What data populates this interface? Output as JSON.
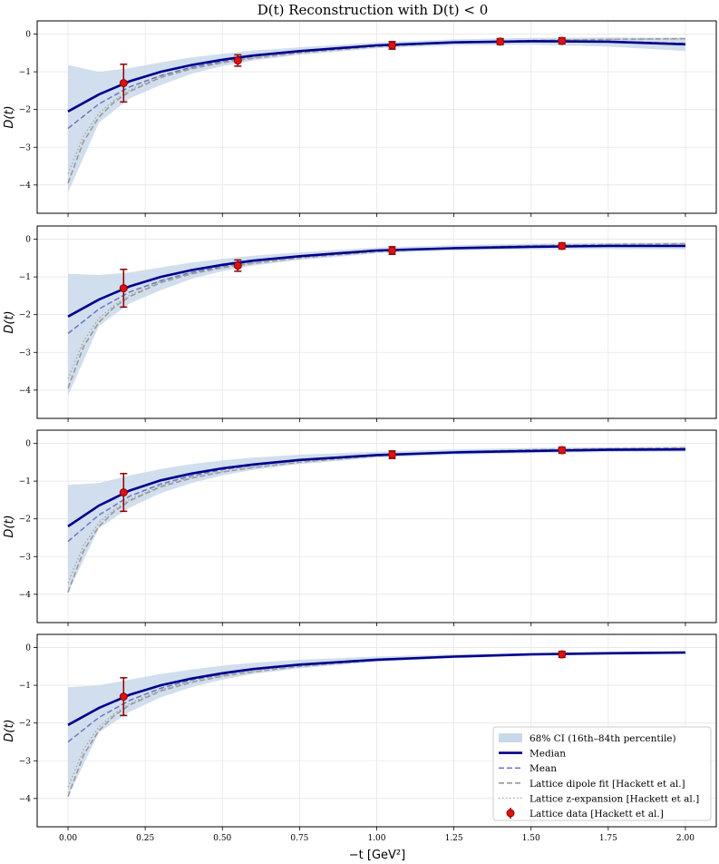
{
  "chart_data": {
    "type": "line",
    "title": "D(t) Reconstruction with D(t) < 0",
    "xlabel": "−t [GeV²]",
    "ylabel": "D(t)",
    "xlim": [
      -0.1,
      2.1
    ],
    "ylim": [
      -4.75,
      0.35
    ],
    "xticks": [
      "0.00",
      "0.25",
      "0.50",
      "0.75",
      "1.00",
      "1.25",
      "1.50",
      "1.75",
      "2.00"
    ],
    "yticks": [
      "0",
      "−1",
      "−2",
      "−3",
      "−4"
    ],
    "grid": true,
    "legend_placement": "lower-right",
    "legend": [
      "68% CI (16th–84th percentile)",
      "Median",
      "Mean",
      "Lattice dipole fit [Hackett et al.]",
      "Lattice z-expansion [Hackett et al.]",
      "Lattice data [Hackett et al.]"
    ],
    "colors": {
      "band": "#c9d8ea",
      "median": "#00008b",
      "mean": "#6b75c2",
      "dipole": "#999999",
      "zexp": "#a8a8a8",
      "data": "#dd1111",
      "errorbar": "#8b0000"
    },
    "reference": {
      "x": [
        0,
        0.05,
        0.1,
        0.15,
        0.2,
        0.3,
        0.4,
        0.5,
        0.6,
        0.75,
        1.0,
        1.25,
        1.5,
        1.75,
        2.0
      ],
      "dipole": [
        -3.95,
        -2.85,
        -2.2,
        -1.8,
        -1.52,
        -1.15,
        -0.92,
        -0.76,
        -0.64,
        -0.5,
        -0.33,
        -0.23,
        -0.17,
        -0.14,
        -0.12
      ],
      "zexp": [
        -3.7,
        -2.7,
        -2.1,
        -1.75,
        -1.48,
        -1.12,
        -0.9,
        -0.75,
        -0.63,
        -0.49,
        -0.32,
        -0.22,
        -0.17,
        -0.14,
        -0.13
      ]
    },
    "panels": [
      {
        "x": [
          0,
          0.1,
          0.2,
          0.3,
          0.4,
          0.5,
          0.6,
          0.75,
          1.0,
          1.25,
          1.5,
          1.75,
          2.0
        ],
        "median": [
          -2.05,
          -1.6,
          -1.25,
          -1.0,
          -0.82,
          -0.68,
          -0.57,
          -0.45,
          -0.3,
          -0.22,
          -0.19,
          -0.2,
          -0.27
        ],
        "mean": [
          -2.5,
          -1.85,
          -1.4,
          -1.1,
          -0.88,
          -0.72,
          -0.59,
          -0.46,
          -0.3,
          -0.21,
          -0.18,
          -0.19,
          -0.25
        ],
        "band_low": [
          -4.2,
          -2.35,
          -1.7,
          -1.35,
          -1.05,
          -0.85,
          -0.7,
          -0.55,
          -0.38,
          -0.3,
          -0.28,
          -0.33,
          -0.45
        ],
        "band_high": [
          -0.82,
          -1.0,
          -0.9,
          -0.75,
          -0.62,
          -0.52,
          -0.44,
          -0.35,
          -0.22,
          -0.14,
          -0.1,
          -0.09,
          -0.1
        ],
        "data": {
          "x": [
            0.18,
            0.55,
            1.05,
            1.4,
            1.6
          ],
          "y": [
            -1.3,
            -0.7,
            -0.3,
            -0.2,
            -0.18
          ],
          "err": [
            0.5,
            0.15,
            0.1,
            0.08,
            0.08
          ]
        }
      },
      {
        "x": [
          0,
          0.1,
          0.2,
          0.3,
          0.4,
          0.5,
          0.6,
          0.75,
          1.0,
          1.25,
          1.5,
          1.75,
          2.0
        ],
        "median": [
          -2.05,
          -1.6,
          -1.25,
          -1.0,
          -0.82,
          -0.68,
          -0.57,
          -0.45,
          -0.3,
          -0.24,
          -0.2,
          -0.18,
          -0.18
        ],
        "mean": [
          -2.5,
          -1.85,
          -1.4,
          -1.1,
          -0.88,
          -0.72,
          -0.59,
          -0.46,
          -0.3,
          -0.23,
          -0.19,
          -0.17,
          -0.17
        ],
        "band_low": [
          -4.15,
          -2.3,
          -1.7,
          -1.35,
          -1.05,
          -0.85,
          -0.7,
          -0.55,
          -0.38,
          -0.3,
          -0.27,
          -0.26,
          -0.27
        ],
        "band_high": [
          -0.92,
          -0.95,
          -0.88,
          -0.75,
          -0.62,
          -0.52,
          -0.44,
          -0.35,
          -0.22,
          -0.16,
          -0.12,
          -0.1,
          -0.09
        ],
        "data": {
          "x": [
            0.18,
            0.55,
            1.05,
            1.6
          ],
          "y": [
            -1.3,
            -0.7,
            -0.3,
            -0.18
          ],
          "err": [
            0.5,
            0.15,
            0.1,
            0.08
          ]
        }
      },
      {
        "x": [
          0,
          0.1,
          0.2,
          0.3,
          0.4,
          0.5,
          0.6,
          0.75,
          1.0,
          1.25,
          1.5,
          1.75,
          2.0
        ],
        "median": [
          -2.2,
          -1.65,
          -1.25,
          -0.98,
          -0.8,
          -0.66,
          -0.56,
          -0.44,
          -0.31,
          -0.24,
          -0.2,
          -0.17,
          -0.16
        ],
        "mean": [
          -2.6,
          -1.9,
          -1.4,
          -1.08,
          -0.86,
          -0.7,
          -0.58,
          -0.45,
          -0.31,
          -0.24,
          -0.2,
          -0.17,
          -0.16
        ],
        "band_low": [
          -3.95,
          -2.25,
          -1.7,
          -1.32,
          -1.05,
          -0.85,
          -0.7,
          -0.55,
          -0.38,
          -0.3,
          -0.26,
          -0.23,
          -0.22
        ],
        "band_high": [
          -1.1,
          -1.05,
          -0.85,
          -0.68,
          -0.55,
          -0.45,
          -0.38,
          -0.3,
          -0.22,
          -0.16,
          -0.12,
          -0.1,
          -0.08
        ],
        "data": {
          "x": [
            0.18,
            1.05,
            1.6
          ],
          "y": [
            -1.3,
            -0.3,
            -0.18
          ],
          "err": [
            0.5,
            0.1,
            0.08
          ]
        }
      },
      {
        "x": [
          0,
          0.1,
          0.2,
          0.3,
          0.4,
          0.5,
          0.6,
          0.75,
          1.0,
          1.25,
          1.5,
          1.75,
          2.0
        ],
        "median": [
          -2.05,
          -1.6,
          -1.25,
          -1.0,
          -0.82,
          -0.68,
          -0.57,
          -0.45,
          -0.32,
          -0.24,
          -0.18,
          -0.15,
          -0.13
        ],
        "mean": [
          -2.5,
          -1.85,
          -1.4,
          -1.08,
          -0.86,
          -0.71,
          -0.58,
          -0.45,
          -0.32,
          -0.24,
          -0.18,
          -0.15,
          -0.13
        ],
        "band_low": [
          -3.95,
          -2.25,
          -1.7,
          -1.32,
          -1.05,
          -0.85,
          -0.7,
          -0.55,
          -0.38,
          -0.28,
          -0.22,
          -0.19,
          -0.17
        ],
        "band_high": [
          -1.05,
          -1.0,
          -0.85,
          -0.7,
          -0.58,
          -0.48,
          -0.4,
          -0.32,
          -0.24,
          -0.18,
          -0.14,
          -0.11,
          -0.09
        ],
        "data": {
          "x": [
            0.18,
            1.6
          ],
          "y": [
            -1.3,
            -0.18
          ],
          "err": [
            0.5,
            0.08
          ]
        }
      }
    ]
  }
}
